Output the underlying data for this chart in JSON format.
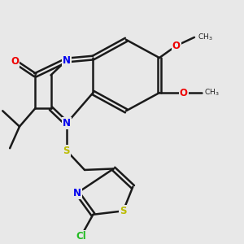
{
  "bg": "#e8e8e8",
  "bond_col": "#1a1a1a",
  "lw": 1.8,
  "N_col": "#0000ee",
  "O_col": "#ee0000",
  "S_col": "#bbbb00",
  "Cl_col": "#22bb22",
  "C_col": "#1a1a1a",
  "fs": 8.5,
  "xlim": [
    0,
    10
  ],
  "ylim": [
    0,
    10
  ]
}
